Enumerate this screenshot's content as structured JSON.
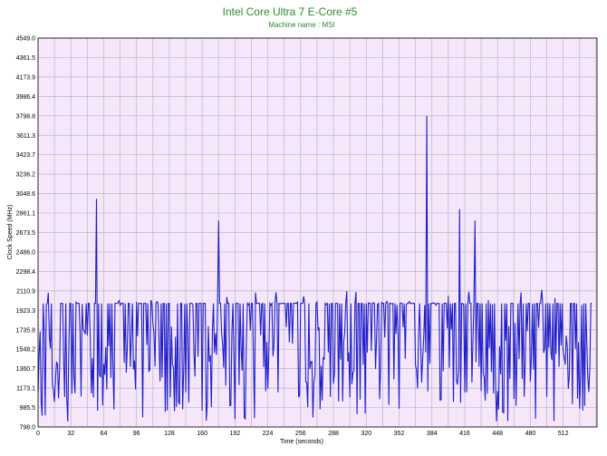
{
  "colors": {
    "title": "#2e8b2e",
    "plot_bg": "#f5e6fa",
    "grid": "#b8b8c8",
    "line": "#1f1fc8",
    "frame": "#000000"
  },
  "chart_data": {
    "type": "line",
    "title": "Intel Core Ultra 7 E-Core #5",
    "subtitle": "Machine name : MSI",
    "xlabel": "Time (seconds)",
    "ylabel": "Clock Speed (MHz)",
    "xlim": [
      0,
      545
    ],
    "ylim": [
      798.0,
      4549.0
    ],
    "grid": true,
    "legend": "none",
    "y_ticks": [
      "798.0",
      "985.5",
      "1173.1",
      "1360.7",
      "1548.2",
      "1735.8",
      "1923.3",
      "2110.9",
      "2298.4",
      "2486.0",
      "2673.5",
      "2861.1",
      "3048.6",
      "3236.2",
      "3423.7",
      "3611.3",
      "3798.8",
      "3986.4",
      "4173.9",
      "4361.5",
      "4549.0"
    ],
    "x_ticks": [
      "0",
      "32",
      "64",
      "96",
      "128",
      "160",
      "192",
      "224",
      "256",
      "288",
      "320",
      "352",
      "384",
      "416",
      "448",
      "480",
      "512"
    ],
    "series": [
      {
        "seed": 7,
        "step": 1,
        "base": 1990,
        "dips": [
          850,
          1800
        ],
        "spikes": [
          {
            "x": 57,
            "value": 3000
          },
          {
            "x": 176,
            "value": 2790
          },
          {
            "x": 379,
            "value": 3800
          },
          {
            "x": 411,
            "value": 2900
          },
          {
            "x": 426,
            "value": 2790
          }
        ]
      }
    ]
  }
}
